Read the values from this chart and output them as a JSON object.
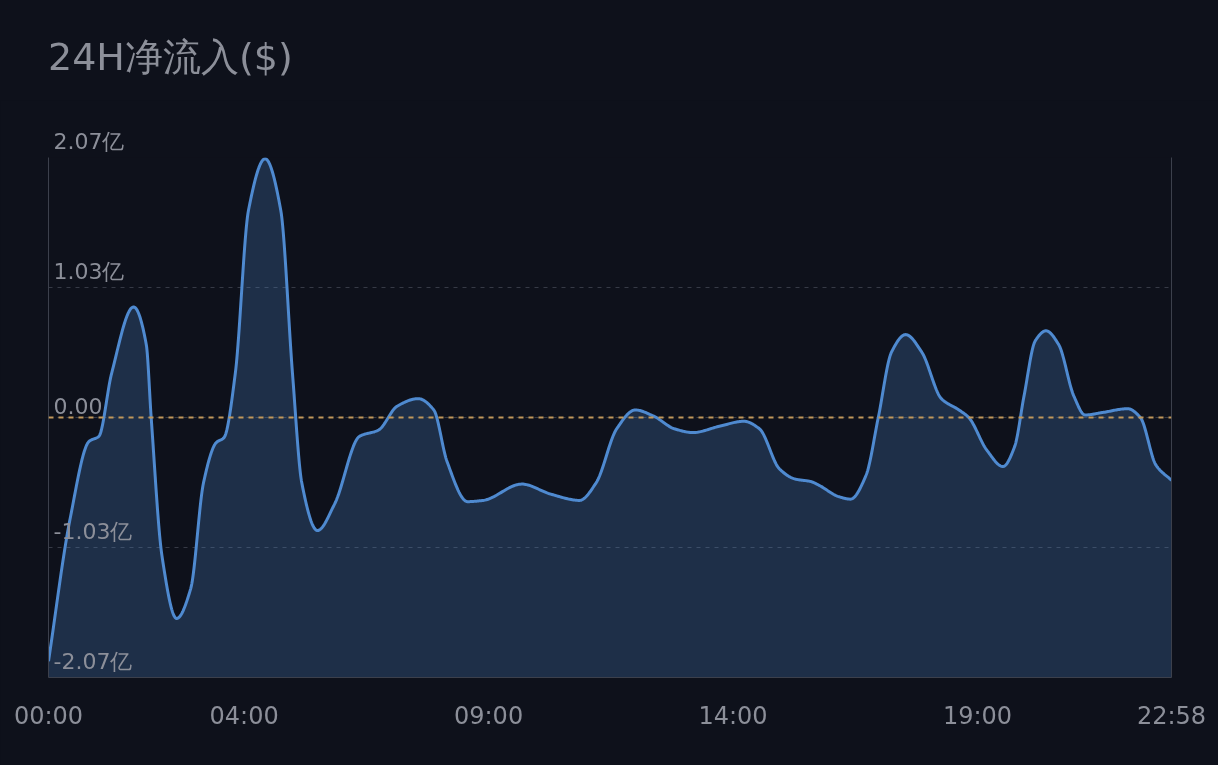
{
  "chart_data": {
    "type": "area",
    "title": "24H净流入($)",
    "x": [
      0,
      0.44,
      0.83,
      1.03,
      1.29,
      1.74,
      2.0,
      2.1,
      2.32,
      2.62,
      2.91,
      3.17,
      3.43,
      3.59,
      3.82,
      4.09,
      4.43,
      4.75,
      4.99,
      5.18,
      5.5,
      5.85,
      6.36,
      6.75,
      7.13,
      7.56,
      7.88,
      8.15,
      8.57,
      8.89,
      9.68,
      10.27,
      10.86,
      11.2,
      11.62,
      12.0,
      12.38,
      12.8,
      13.18,
      13.72,
      14.22,
      14.54,
      14.95,
      15.27,
      15.59,
      15.76,
      16.16,
      16.4,
      16.72,
      16.97,
      17.24,
      17.53,
      17.86,
      18.26,
      18.62,
      18.82,
      19.19,
      19.52,
      19.76,
      19.95,
      20.18,
      20.4,
      20.66,
      20.97,
      21.2,
      21.56,
      22.07,
      22.33,
      22.65,
      22.9667
    ],
    "series": [
      {
        "color": "#4f8ad0",
        "line_style": "solid",
        "values": [
          -1.94,
          -0.81,
          -0.19,
          -0.15,
          0.35,
          0.88,
          0.58,
          0.0,
          -1.1,
          -1.6,
          -1.36,
          -0.52,
          -0.2,
          -0.16,
          0.35,
          1.65,
          2.06,
          1.65,
          0.35,
          -0.52,
          -0.9,
          -0.69,
          -0.15,
          -0.1,
          0.09,
          0.15,
          0.06,
          -0.35,
          -0.67,
          -0.66,
          -0.53,
          -0.61,
          -0.66,
          -0.52,
          -0.09,
          0.06,
          0.01,
          -0.09,
          -0.12,
          -0.07,
          -0.03,
          -0.09,
          -0.41,
          -0.49,
          -0.51,
          -0.54,
          -0.63,
          -0.65,
          -0.46,
          0.0,
          0.52,
          0.66,
          0.52,
          0.15,
          0.06,
          0.0,
          -0.26,
          -0.39,
          -0.23,
          0.17,
          0.61,
          0.69,
          0.58,
          0.17,
          0.02,
          0.04,
          0.07,
          0.0,
          -0.38,
          -0.5
        ]
      }
    ],
    "xlim": [
      0,
      22.9667
    ],
    "xticks": [
      {
        "value": 0,
        "label": "00:00"
      },
      {
        "value": 4,
        "label": "04:00"
      },
      {
        "value": 9,
        "label": "09:00"
      },
      {
        "value": 14,
        "label": "14:00"
      },
      {
        "value": 19,
        "label": "19:00"
      },
      {
        "value": 22.9667,
        "label": "22:58"
      }
    ],
    "ylim": [
      -2.07,
      2.07
    ],
    "yticks": [
      {
        "value": -2.07,
        "label": "-2.07亿"
      },
      {
        "value": -1.035,
        "label": "-1.03亿"
      },
      {
        "value": 0,
        "label": "0.00"
      },
      {
        "value": 1.035,
        "label": "1.03亿"
      },
      {
        "value": 2.07,
        "label": "2.07亿"
      }
    ],
    "grid": "y",
    "ref_lines": [
      {
        "axis": "y",
        "value": 0,
        "color": "#c0975a",
        "line_style": "dashed"
      }
    ]
  }
}
